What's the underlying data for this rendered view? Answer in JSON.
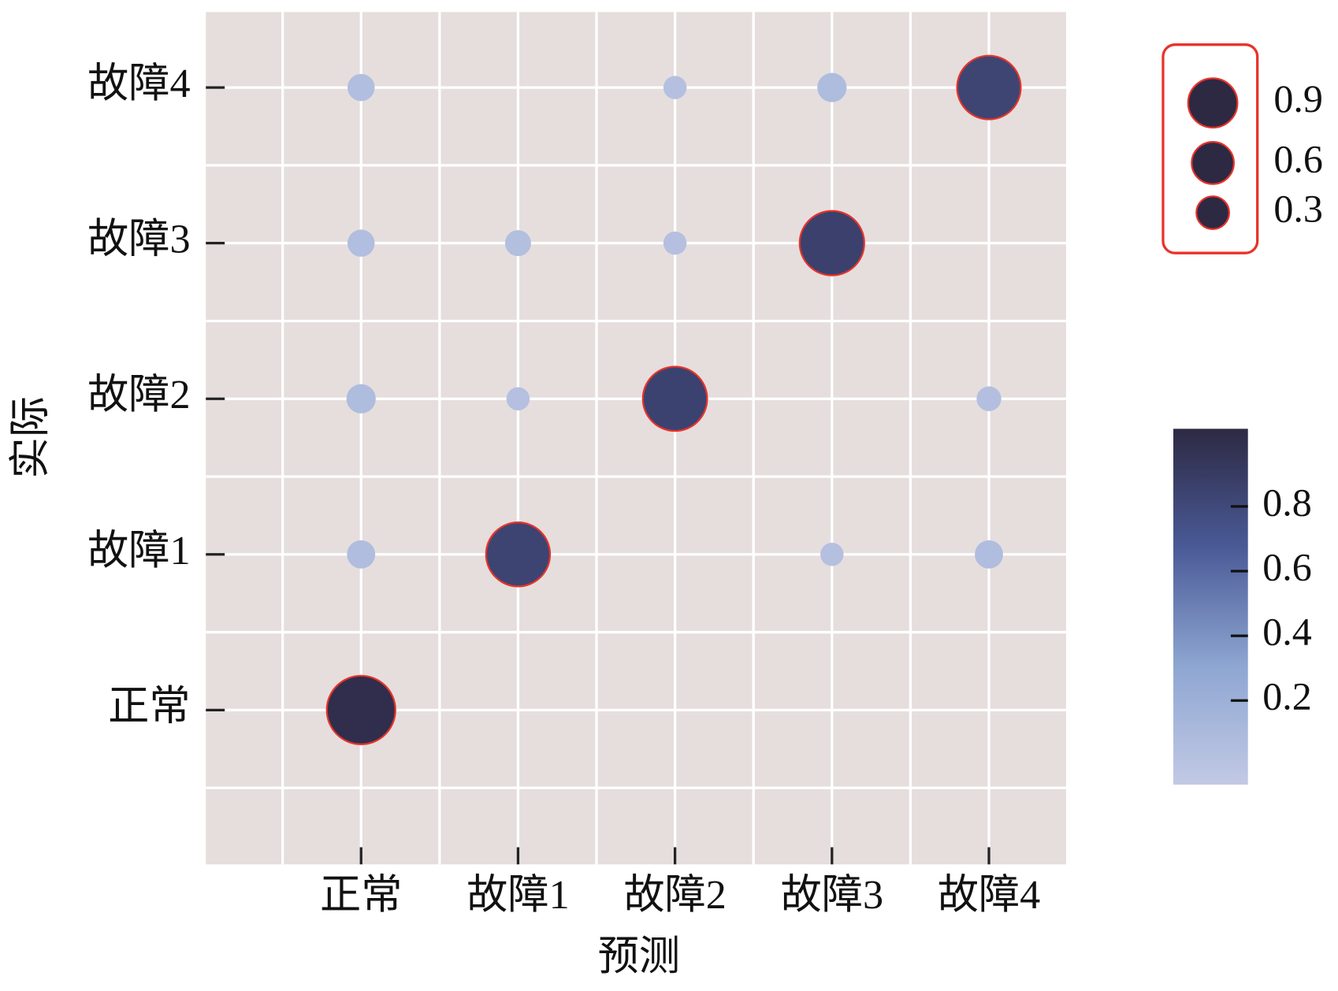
{
  "chart_data": {
    "type": "bubble",
    "x_label": "预测",
    "y_label": "实际",
    "x_categories": [
      "正常",
      "故障1",
      "故障2",
      "故障3",
      "故障4"
    ],
    "y_categories": [
      "正常",
      "故障1",
      "故障2",
      "故障3",
      "故障4"
    ],
    "matrix": [
      [
        1.0,
        null,
        null,
        null,
        null
      ],
      [
        0.07,
        0.84,
        null,
        0.03,
        0.07
      ],
      [
        0.08,
        0.03,
        0.85,
        null,
        0.04
      ],
      [
        0.06,
        0.05,
        0.03,
        0.86,
        null
      ],
      [
        0.06,
        null,
        0.03,
        0.08,
        0.83
      ]
    ],
    "size_legend": [
      0.9,
      0.6,
      0.3
    ],
    "colorbar_lim": [
      -0.06,
      1.04
    ],
    "colorbar_ticks": [
      0.2,
      0.4,
      0.6,
      0.8
    ],
    "colormap": [
      "#c2c9e5",
      "#8ea6d2",
      "#4a5a97",
      "#2d2943"
    ],
    "edge_color": "#e8332a",
    "background": "#e5dedd",
    "grid": true
  }
}
